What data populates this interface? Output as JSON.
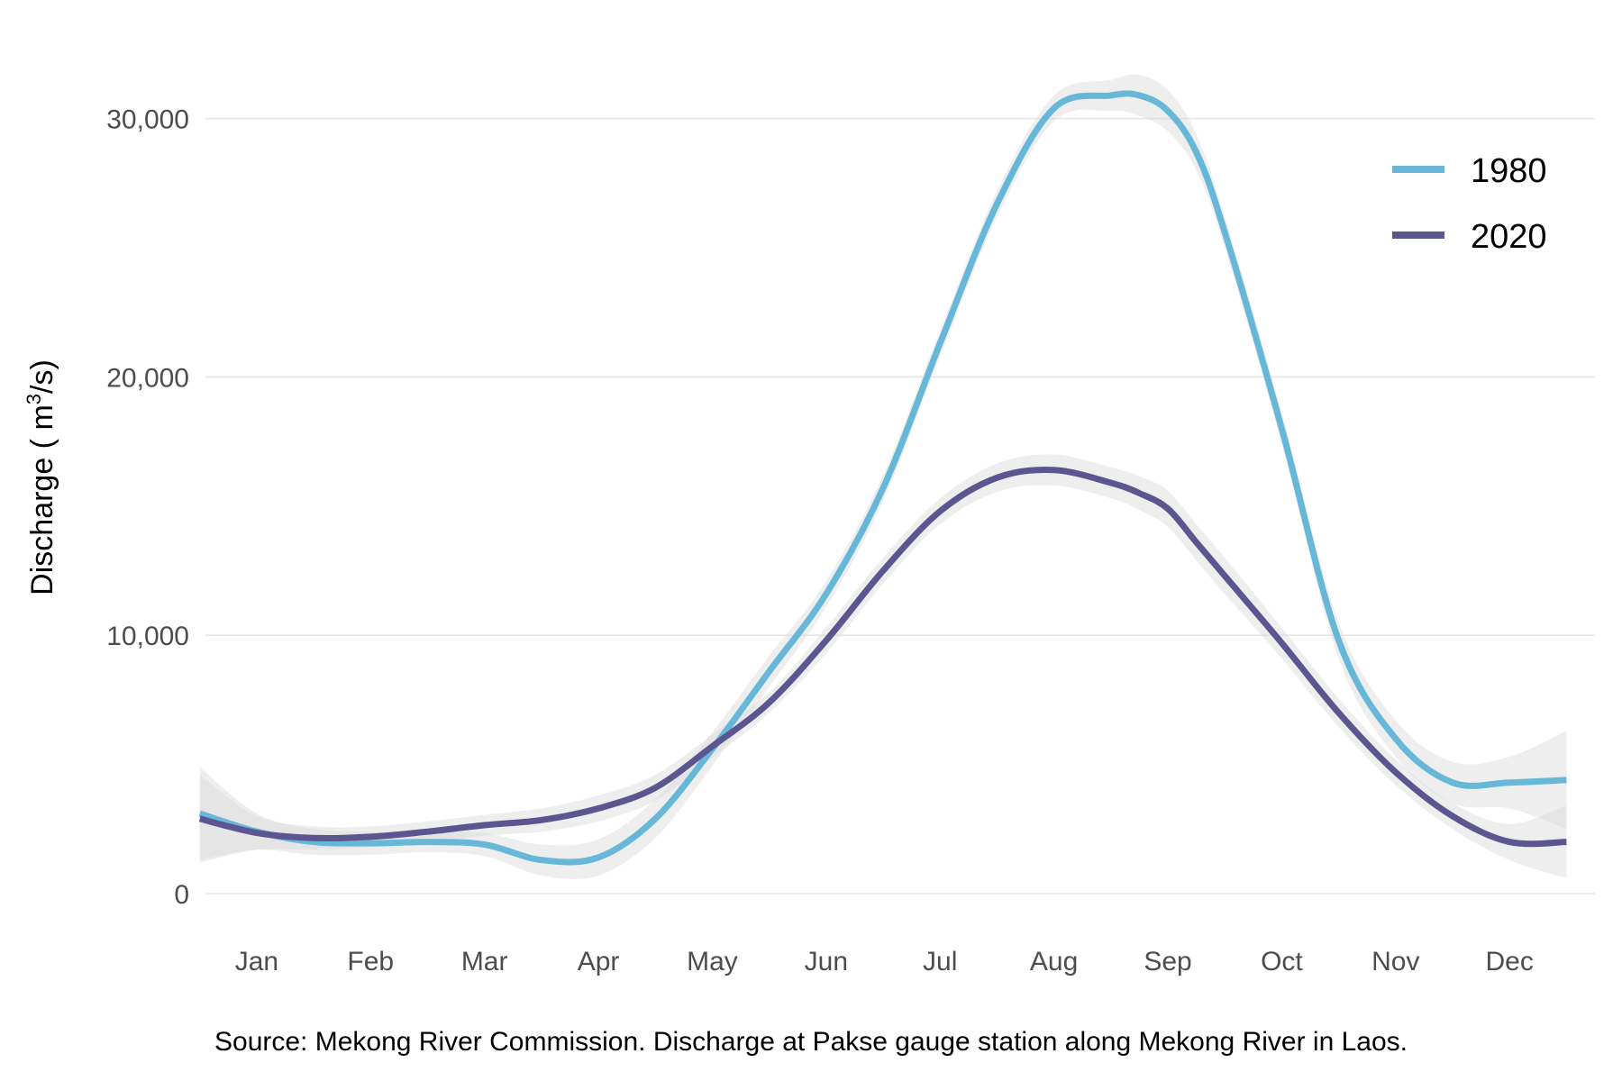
{
  "chart_data": {
    "type": "line",
    "xlabel": "",
    "ylabel_main": "Discharge (",
    "ylabel_unit_base": " m",
    "ylabel_unit_sup": "3",
    "ylabel_unit_rest": "/s)",
    "ylim": [
      -1500,
      32500
    ],
    "xlim": [
      0.55,
      12.75
    ],
    "y_ticks": [
      0,
      10000,
      20000,
      30000
    ],
    "y_tick_labels": [
      "0",
      "10,000",
      "20,000",
      "30,000"
    ],
    "categories": [
      "Jan",
      "Feb",
      "Mar",
      "Apr",
      "May",
      "Jun",
      "Jul",
      "Aug",
      "Sep",
      "Oct",
      "Nov",
      "Dec"
    ],
    "grid": true,
    "legend_position": "top-right",
    "x": [
      0.5,
      1.0,
      1.5,
      2.0,
      2.5,
      3.0,
      3.5,
      4.0,
      4.5,
      5.0,
      5.5,
      6.0,
      6.5,
      7.0,
      7.5,
      8.0,
      8.5,
      8.75,
      9.0,
      9.25,
      9.5,
      10.0,
      10.5,
      11.0,
      11.5,
      12.0,
      12.5
    ],
    "series": [
      {
        "name": "1980",
        "color": "#67b7d9",
        "band_halfwidth": [
          1800,
          700,
          500,
          450,
          400,
          450,
          600,
          700,
          750,
          650,
          600,
          500,
          500,
          500,
          500,
          500,
          600,
          800,
          800,
          700,
          600,
          600,
          700,
          700,
          800,
          1000,
          1900
        ],
        "values": [
          3100,
          2400,
          2000,
          1950,
          2000,
          1900,
          1300,
          1400,
          2900,
          5600,
          8600,
          11600,
          15700,
          21300,
          26700,
          30400,
          30900,
          30900,
          30300,
          28700,
          25600,
          18000,
          9800,
          6000,
          4300,
          4300,
          4400
        ]
      },
      {
        "name": "2020",
        "color": "#5b5690",
        "band_halfwidth": [
          1700,
          650,
          450,
          400,
          400,
          400,
          450,
          500,
          500,
          450,
          400,
          500,
          500,
          500,
          550,
          600,
          600,
          650,
          700,
          700,
          700,
          600,
          550,
          500,
          500,
          700,
          1400
        ],
        "values": [
          2900,
          2350,
          2150,
          2200,
          2400,
          2650,
          2850,
          3300,
          4100,
          5700,
          7400,
          9800,
          12500,
          14800,
          16100,
          16400,
          15900,
          15500,
          14900,
          13600,
          12300,
          9700,
          7000,
          4700,
          3000,
          2000,
          2000
        ]
      }
    ]
  },
  "caption": "Source: Mekong River Commission. Discharge at Pakse gauge station along Mekong River in Laos."
}
